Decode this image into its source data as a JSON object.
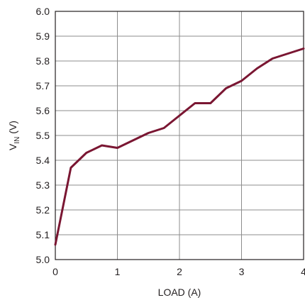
{
  "chart_data": {
    "type": "line",
    "xlabel": "LOAD (A)",
    "ylabel_main": "V",
    "ylabel_sub": "IN",
    "ylabel_unit": " (V)",
    "xlim": [
      0,
      4
    ],
    "ylim": [
      5.0,
      6.0
    ],
    "grid": true,
    "x_ticks": [
      0,
      1,
      2,
      3,
      4
    ],
    "x_tick_labels": [
      "0",
      "1",
      "2",
      "3",
      "4"
    ],
    "y_ticks": [
      5.0,
      5.1,
      5.2,
      5.3,
      5.4,
      5.5,
      5.6,
      5.7,
      5.8,
      5.9,
      6.0
    ],
    "y_tick_labels": [
      "5.0",
      "5.1",
      "5.2",
      "5.3",
      "5.4",
      "5.5",
      "5.6",
      "5.7",
      "5.8",
      "5.9",
      "6.0"
    ],
    "series": [
      {
        "color": "#7a1632",
        "x": [
          0,
          0.25,
          0.5,
          0.75,
          1.0,
          1.25,
          1.5,
          1.75,
          2.0,
          2.25,
          2.5,
          2.75,
          3.0,
          3.25,
          3.5,
          3.75,
          4.0
        ],
        "y": [
          5.06,
          5.37,
          5.43,
          5.46,
          5.45,
          5.48,
          5.51,
          5.53,
          5.58,
          5.63,
          5.63,
          5.69,
          5.72,
          5.77,
          5.81,
          5.83,
          5.85
        ]
      }
    ]
  }
}
